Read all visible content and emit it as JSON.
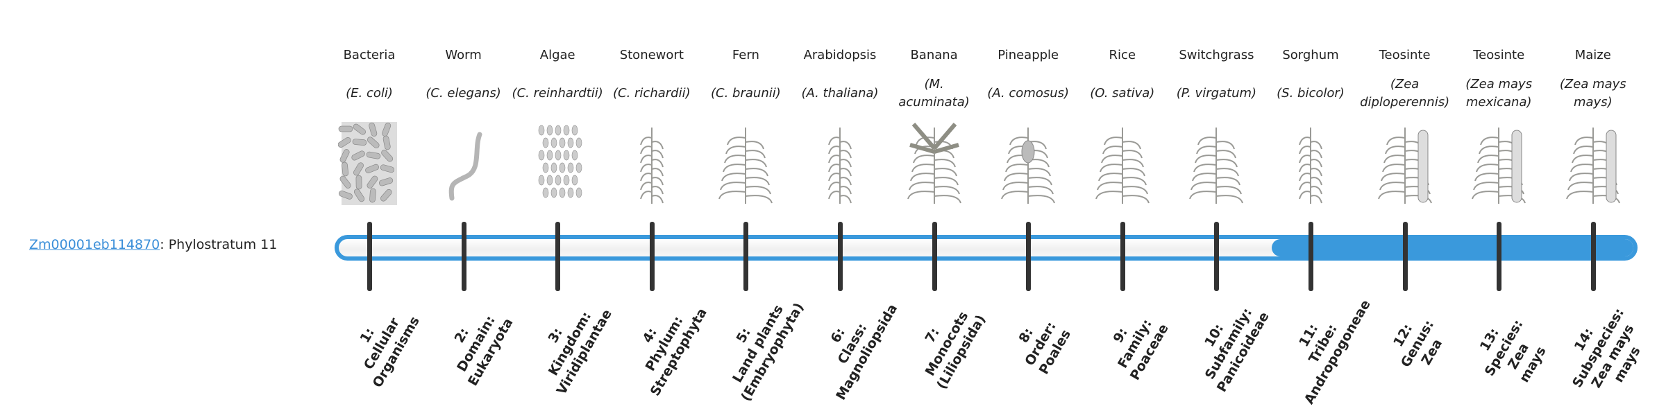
{
  "gene": {
    "id": "Zm00001eb114870",
    "suffix": ": Phylostratum 11"
  },
  "phylostratum": {
    "current": 11,
    "total": 14
  },
  "colors": {
    "accent": "#3a99dc",
    "tick": "#333333",
    "link": "#3b8fd9"
  },
  "columns": [
    {
      "name": "Bacteria",
      "species": "(E. coli)",
      "icon": "bacteria-icon",
      "rank": [
        "1:",
        "Cellular",
        "Organisms"
      ]
    },
    {
      "name": "Worm",
      "species": "(C. elegans)",
      "icon": "worm-icon",
      "rank": [
        "2:",
        "Domain:",
        "Eukaryota"
      ]
    },
    {
      "name": "Algae",
      "species": "(C. reinhardtii)",
      "icon": "algae-icon",
      "rank": [
        "3:",
        "Kingdom:",
        "Viridiplantae"
      ]
    },
    {
      "name": "Stonewort",
      "species": "(C. richardii)",
      "icon": "stonewort-icon",
      "rank": [
        "4:",
        "Phylum:",
        "Streptophyta"
      ]
    },
    {
      "name": "Fern",
      "species": "(C. braunii)",
      "icon": "fern-icon",
      "rank": [
        "5:",
        "Land plants",
        "(Embryophyta)"
      ]
    },
    {
      "name": "Arabidopsis",
      "species": "(A. thaliana)",
      "icon": "arabidopsis-icon",
      "rank": [
        "6:",
        "Class:",
        "Magnoliopsida"
      ]
    },
    {
      "name": "Banana",
      "species": "(M. acuminata)",
      "icon": "banana-icon",
      "rank": [
        "7:",
        "Monocots",
        "(Liliopsida)"
      ]
    },
    {
      "name": "Pineapple",
      "species": "(A. comosus)",
      "icon": "pineapple-icon",
      "rank": [
        "8:",
        "Order:",
        "Poales"
      ]
    },
    {
      "name": "Rice",
      "species": "(O. sativa)",
      "icon": "rice-icon",
      "rank": [
        "9:",
        "Family:",
        "Poaceae"
      ]
    },
    {
      "name": "Switchgrass",
      "species": "(P. virgatum)",
      "icon": "switchgrass-icon",
      "rank": [
        "10:",
        "Subfamily:",
        "Panicoideae"
      ]
    },
    {
      "name": "Sorghum",
      "species": "(S. bicolor)",
      "icon": "sorghum-icon",
      "rank": [
        "11:",
        "Tribe:",
        "Andropogoneae"
      ]
    },
    {
      "name": "Teosinte",
      "species": "(Zea diploperennis)",
      "icon": "teosinte-icon",
      "rank": [
        "12:",
        "Genus:",
        "Zea"
      ]
    },
    {
      "name": "Teosinte",
      "species": "(Zea mays mexicana)",
      "icon": "teosinte-icon",
      "rank": [
        "13:",
        "Species:",
        "Zea",
        "mays"
      ]
    },
    {
      "name": "Maize",
      "species": "(Zea mays mays)",
      "icon": "maize-icon",
      "rank": [
        "14:",
        "Subspecies:",
        "Zea mays",
        "mays"
      ]
    }
  ]
}
